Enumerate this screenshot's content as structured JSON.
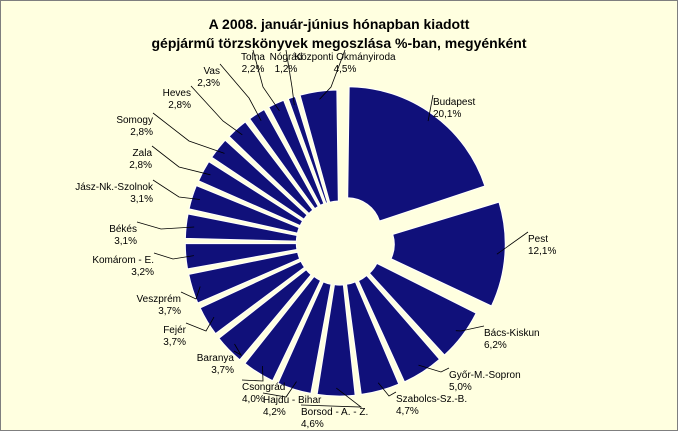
{
  "chart_data": {
    "type": "pie",
    "title_lines": [
      "A  2008. január-június hónapban kiadott",
      "gépjármű törzskönyvek megoszlása %-ban, megyénként"
    ],
    "slices": [
      {
        "name": "Budapest",
        "value": 20.1,
        "value_label": "20,1%"
      },
      {
        "name": "Pest",
        "value": 12.1,
        "value_label": "12,1%"
      },
      {
        "name": "Bács-Kiskun",
        "value": 6.2,
        "value_label": "6,2%"
      },
      {
        "name": "Győr-M.-Sopron",
        "value": 5.0,
        "value_label": "5,0%"
      },
      {
        "name": "Szabolcs-Sz.-B.",
        "value": 4.7,
        "value_label": "4,7%"
      },
      {
        "name": "Borsod - A. - Z.",
        "value": 4.6,
        "value_label": "4,6%"
      },
      {
        "name": "Hajdú - Bihar",
        "value": 4.2,
        "value_label": "4,2%"
      },
      {
        "name": "Csongrád",
        "value": 4.0,
        "value_label": "4,0%"
      },
      {
        "name": "Baranya",
        "value": 3.7,
        "value_label": "3,7%"
      },
      {
        "name": "Fejér",
        "value": 3.7,
        "value_label": "3,7%"
      },
      {
        "name": "Veszprém",
        "value": 3.7,
        "value_label": "3,7%"
      },
      {
        "name": "Komárom - E.",
        "value": 3.2,
        "value_label": "3,2%"
      },
      {
        "name": "Békés",
        "value": 3.1,
        "value_label": "3,1%"
      },
      {
        "name": "Jász-Nk.-Szolnok",
        "value": 3.1,
        "value_label": "3,1%"
      },
      {
        "name": "Zala",
        "value": 2.8,
        "value_label": "2,8%"
      },
      {
        "name": "Somogy",
        "value": 2.8,
        "value_label": "2,8%"
      },
      {
        "name": "Heves",
        "value": 2.8,
        "value_label": "2,8%"
      },
      {
        "name": "Vas",
        "value": 2.3,
        "value_label": "2,3%"
      },
      {
        "name": "Tolna",
        "value": 2.2,
        "value_label": "2,2%"
      },
      {
        "name": "Nógrád",
        "value": 1.2,
        "value_label": "1,2%"
      },
      {
        "name": "Központi Okmányiroda",
        "value": 4.5,
        "value_label": "4,5%"
      }
    ],
    "slice_color": "#10107a",
    "background_color": "#ffffe0",
    "style": "exploded"
  }
}
